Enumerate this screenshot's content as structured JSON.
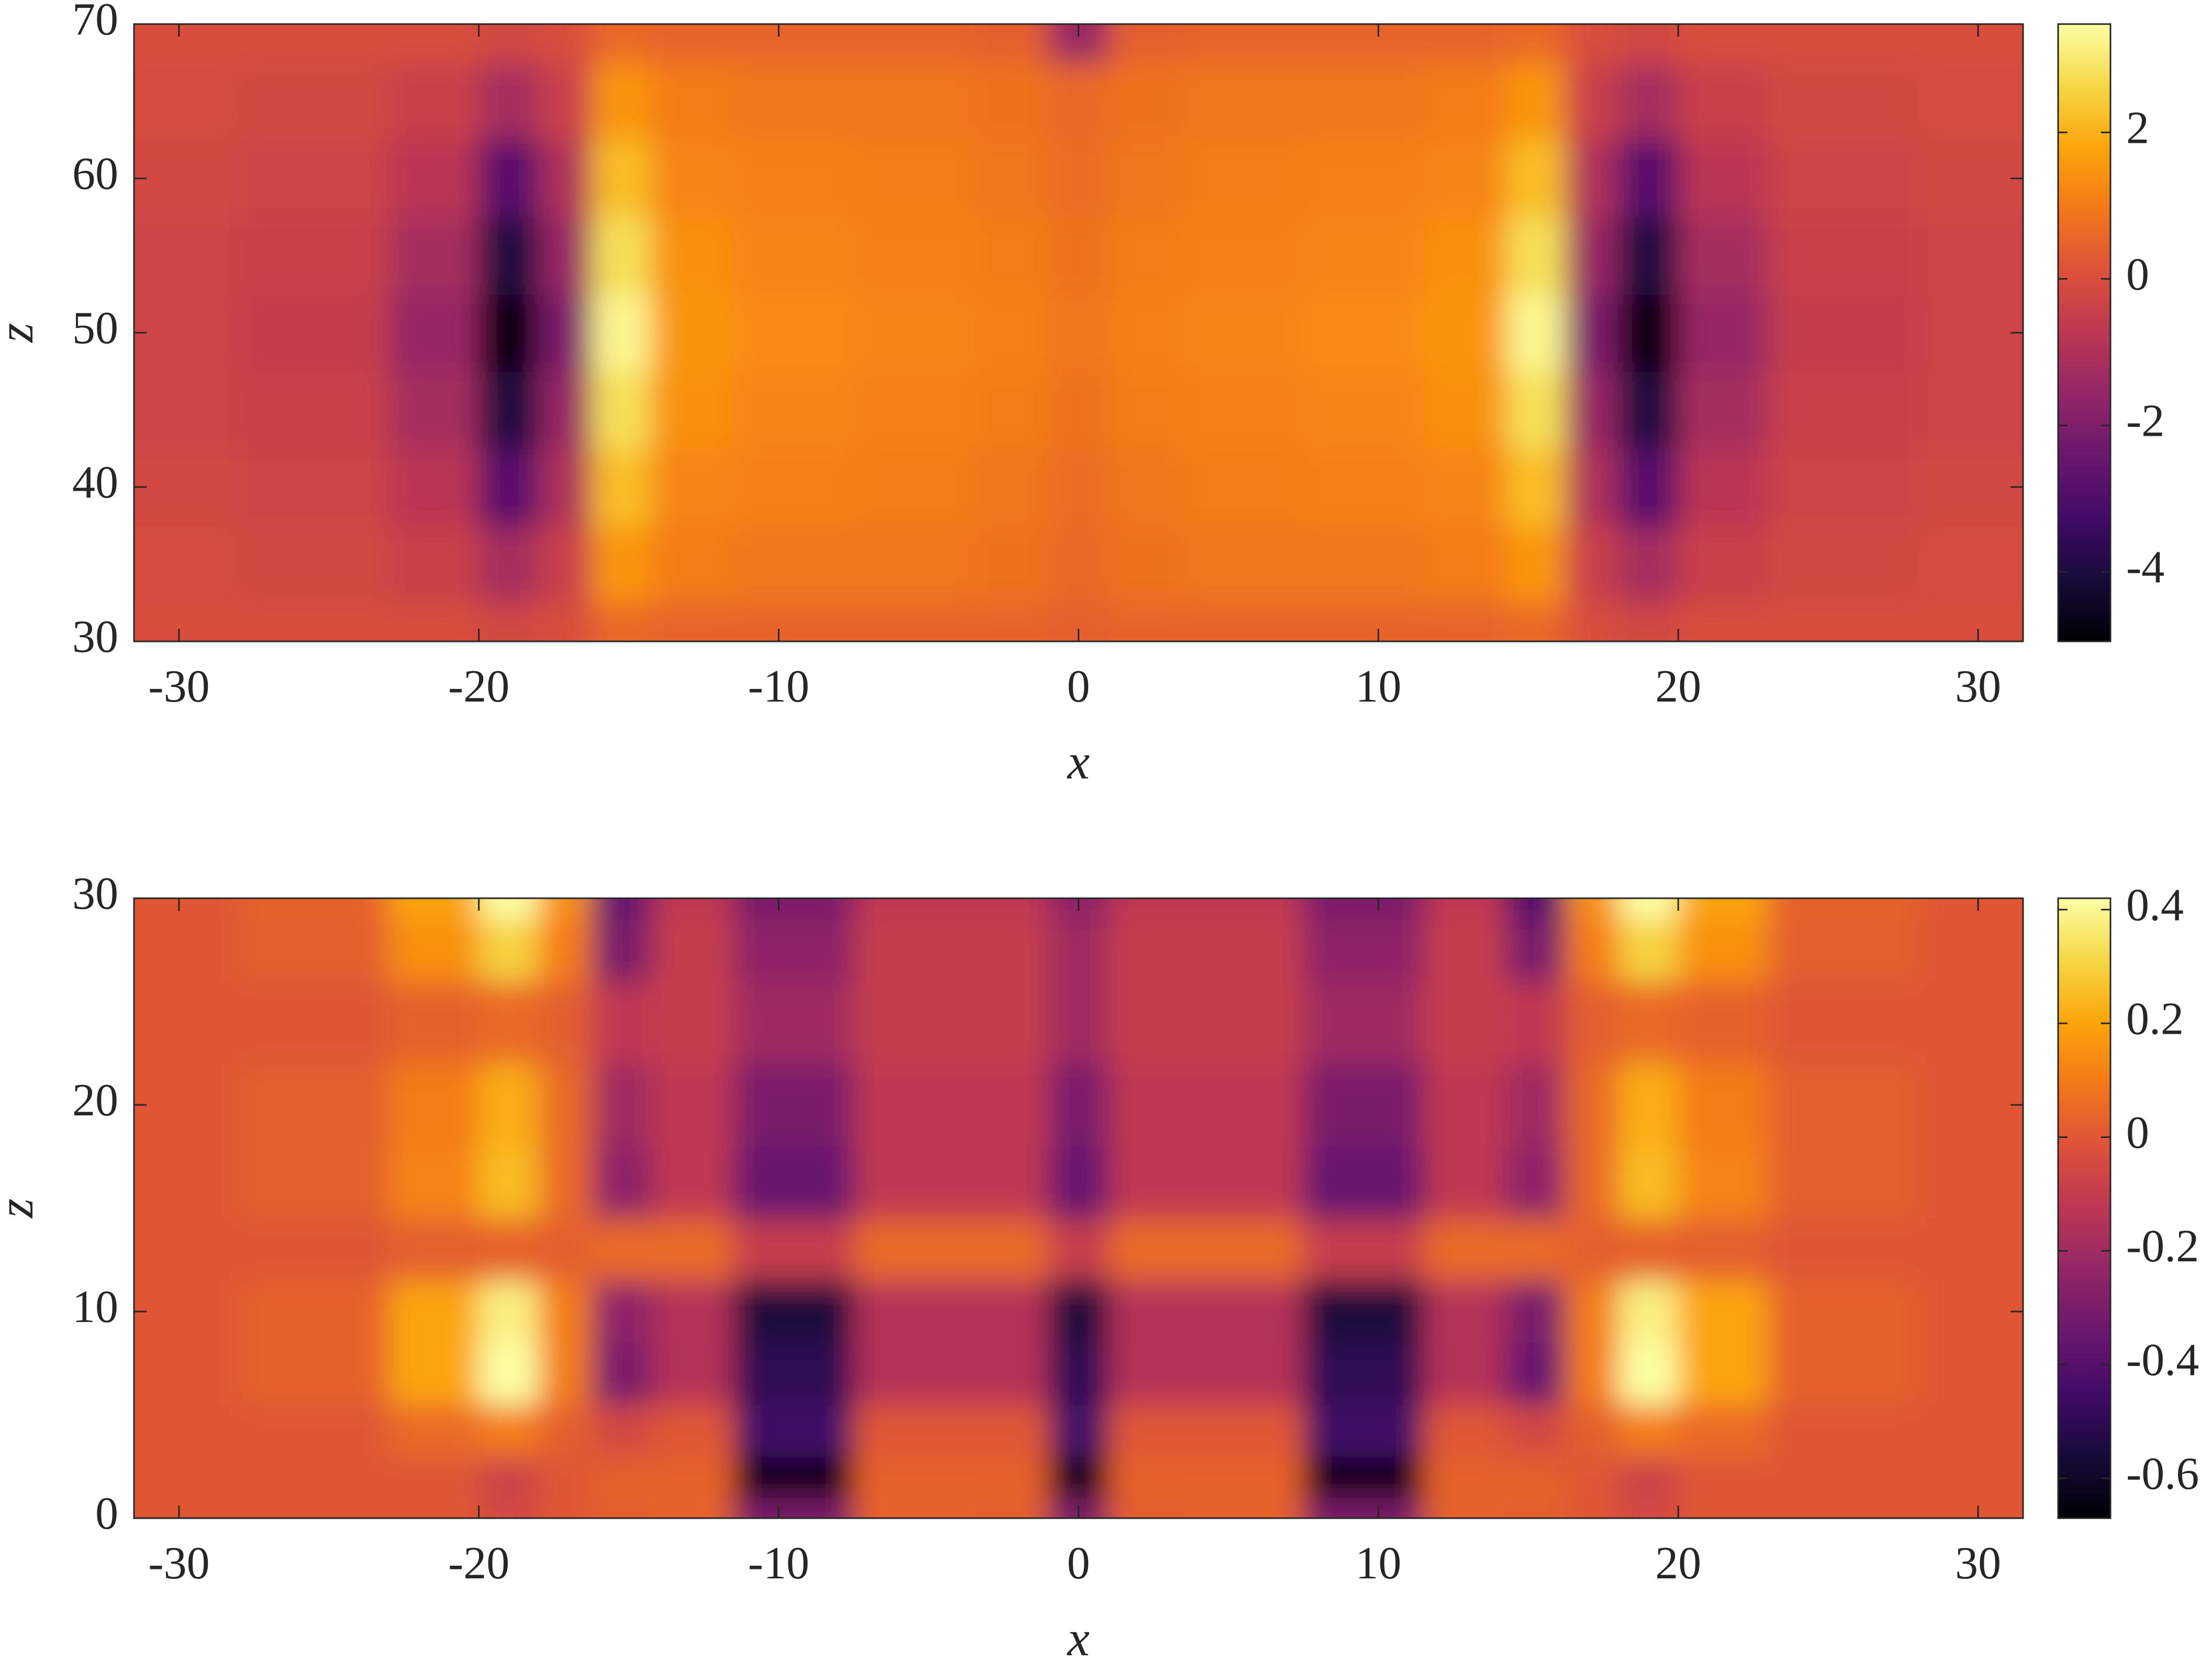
{
  "chart_data": [
    {
      "type": "heatmap",
      "colormap": "inferno",
      "x": [
        -31,
        -25,
        -21,
        -19,
        -17,
        -15.5,
        -13,
        -10,
        -5,
        -2,
        0,
        2,
        5,
        10,
        13,
        15.5,
        17,
        19,
        21,
        25,
        31
      ],
      "y": [
        30,
        35,
        40,
        45,
        50,
        55,
        60,
        65,
        70
      ],
      "values": [
        [
          0,
          0,
          0,
          -0.2,
          0,
          0.6,
          0.5,
          0.5,
          0.5,
          0.5,
          0.4,
          0.5,
          0.5,
          0.5,
          0.5,
          0.6,
          0,
          -0.2,
          0,
          0,
          0
        ],
        [
          -0.1,
          -0.2,
          -0.4,
          -1.2,
          -0.4,
          1.5,
          1.0,
          0.9,
          0.9,
          0.8,
          0.6,
          0.8,
          0.9,
          0.9,
          1.0,
          1.5,
          -0.4,
          -1.2,
          -0.4,
          -0.2,
          -0.1
        ],
        [
          -0.2,
          -0.3,
          -0.8,
          -2.8,
          -1,
          2.2,
          1.2,
          1.1,
          1.0,
          0.9,
          0.7,
          0.9,
          1.0,
          1.1,
          1.2,
          2.2,
          -1,
          -2.8,
          -0.8,
          -0.3,
          -0.2
        ],
        [
          -0.3,
          -0.4,
          -1.2,
          -4,
          -1.5,
          2.8,
          1.4,
          1.2,
          1.1,
          1.0,
          0.8,
          1.0,
          1.1,
          1.2,
          1.4,
          2.8,
          -1.5,
          -4,
          -1.2,
          -0.4,
          -0.3
        ],
        [
          -0.3,
          -0.5,
          -1.5,
          -4.9,
          -2,
          3.3,
          1.5,
          1.3,
          1.2,
          1.1,
          0.9,
          1.1,
          1.2,
          1.3,
          1.5,
          3.3,
          -2,
          -4.9,
          -1.5,
          -0.5,
          -0.3
        ],
        [
          -0.3,
          -0.4,
          -1.2,
          -4,
          -1.5,
          2.8,
          1.4,
          1.2,
          1.1,
          1.0,
          0.8,
          1.0,
          1.1,
          1.2,
          1.4,
          2.8,
          -1.5,
          -4,
          -1.2,
          -0.4,
          -0.3
        ],
        [
          -0.2,
          -0.3,
          -0.8,
          -2.8,
          -1,
          2.2,
          1.2,
          1.1,
          1.0,
          0.9,
          0.7,
          0.9,
          1.0,
          1.1,
          1.2,
          2.2,
          -1,
          -2.8,
          -0.8,
          -0.3,
          -0.2
        ],
        [
          -0.1,
          -0.2,
          -0.4,
          -1.2,
          -0.4,
          1.5,
          1.0,
          0.9,
          0.9,
          0.8,
          0.6,
          0.8,
          0.9,
          0.9,
          1.0,
          1.5,
          -0.4,
          -1.2,
          -0.4,
          -0.2,
          -0.1
        ],
        [
          0,
          0,
          0,
          -0.2,
          0,
          0.6,
          0.5,
          0.5,
          0.5,
          0.4,
          -1.5,
          0.4,
          0.5,
          0.5,
          0.5,
          0.6,
          0,
          -0.2,
          0,
          0,
          0
        ]
      ],
      "xlim": [
        -31.5,
        31.5
      ],
      "ylim": [
        30,
        70
      ],
      "xticks": [
        -30,
        -20,
        -10,
        0,
        10,
        20,
        30
      ],
      "yticks": [
        30,
        40,
        50,
        60,
        70
      ],
      "xlabel": "x",
      "ylabel": "z",
      "clim": [
        -4.95,
        3.48
      ],
      "cticks": [
        -4,
        -2,
        0,
        2
      ]
    },
    {
      "type": "heatmap",
      "colormap": "inferno",
      "x": [
        -31,
        -25,
        -21,
        -19,
        -17,
        -15.5,
        -13,
        -10,
        -5,
        -2,
        0,
        2,
        5,
        10,
        13,
        15.5,
        17,
        19,
        21,
        25,
        31
      ],
      "y": [
        0,
        2,
        4,
        7,
        10,
        13,
        16,
        20,
        24,
        28,
        30
      ],
      "values": [
        [
          0,
          0,
          0,
          -0.05,
          0,
          0.02,
          0.03,
          -0.3,
          0.03,
          0.02,
          -0.3,
          0.02,
          0.03,
          -0.3,
          0.03,
          0.02,
          0,
          -0.05,
          0,
          0,
          0
        ],
        [
          0,
          0,
          0,
          -0.08,
          0,
          0.03,
          0.03,
          -0.65,
          0.03,
          0.03,
          -0.65,
          0.03,
          0.03,
          -0.65,
          0.03,
          0.03,
          0,
          -0.08,
          0,
          0,
          0
        ],
        [
          0,
          0,
          0.05,
          0.1,
          0.02,
          -0.05,
          0,
          -0.45,
          0,
          0,
          -0.45,
          0,
          0,
          -0.45,
          0,
          -0.05,
          0.02,
          0.1,
          0.05,
          0,
          0
        ],
        [
          0,
          0.03,
          0.2,
          0.42,
          0.1,
          -0.3,
          -0.15,
          -0.5,
          -0.15,
          -0.15,
          -0.5,
          -0.15,
          -0.15,
          -0.5,
          -0.15,
          -0.35,
          0.1,
          0.42,
          0.2,
          0.03,
          0
        ],
        [
          0,
          0.03,
          0.2,
          0.38,
          0.1,
          -0.25,
          -0.15,
          -0.55,
          -0.15,
          -0.15,
          -0.55,
          -0.15,
          -0.15,
          -0.55,
          -0.15,
          -0.3,
          0.1,
          0.38,
          0.2,
          0.03,
          0
        ],
        [
          0,
          0,
          0.02,
          0.03,
          0.02,
          0.05,
          0.05,
          -0.1,
          0.05,
          0.05,
          -0.1,
          0.05,
          0.05,
          -0.1,
          0.05,
          0.05,
          0.02,
          0.03,
          0.02,
          0,
          0
        ],
        [
          0,
          0.02,
          0.12,
          0.25,
          0.05,
          -0.25,
          -0.12,
          -0.35,
          -0.12,
          -0.12,
          -0.35,
          -0.12,
          -0.12,
          -0.35,
          -0.12,
          -0.25,
          0.05,
          0.25,
          0.12,
          0.02,
          0
        ],
        [
          0,
          0.02,
          0.1,
          0.22,
          0.05,
          -0.2,
          -0.12,
          -0.3,
          -0.12,
          -0.12,
          -0.3,
          -0.12,
          -0.12,
          -0.3,
          -0.12,
          -0.2,
          0.05,
          0.22,
          0.1,
          0.02,
          0
        ],
        [
          0,
          0,
          0.03,
          0.05,
          0.02,
          -0.12,
          -0.1,
          -0.2,
          -0.1,
          -0.1,
          -0.2,
          -0.1,
          -0.1,
          -0.2,
          -0.1,
          -0.12,
          0.02,
          0.05,
          0.03,
          0,
          0
        ],
        [
          0,
          0.02,
          0.15,
          0.3,
          0.1,
          -0.3,
          -0.1,
          -0.25,
          -0.1,
          -0.1,
          -0.2,
          -0.1,
          -0.1,
          -0.25,
          -0.1,
          -0.3,
          0.1,
          0.3,
          0.15,
          0.02,
          0
        ],
        [
          0,
          0.03,
          0.2,
          0.42,
          0.15,
          -0.35,
          -0.12,
          -0.3,
          -0.12,
          -0.12,
          -0.25,
          -0.12,
          -0.12,
          -0.3,
          -0.12,
          -0.4,
          0.15,
          0.42,
          0.2,
          0.03,
          0
        ]
      ],
      "xlim": [
        -31.5,
        31.5
      ],
      "ylim": [
        0,
        30
      ],
      "xticks": [
        -30,
        -20,
        -10,
        0,
        10,
        20,
        30
      ],
      "yticks": [
        0,
        10,
        20,
        30
      ],
      "xlabel": "x",
      "ylabel": "z",
      "clim": [
        -0.67,
        0.42
      ],
      "cticks": [
        -0.6,
        -0.4,
        -0.2,
        0,
        0.2,
        0.4
      ]
    }
  ]
}
